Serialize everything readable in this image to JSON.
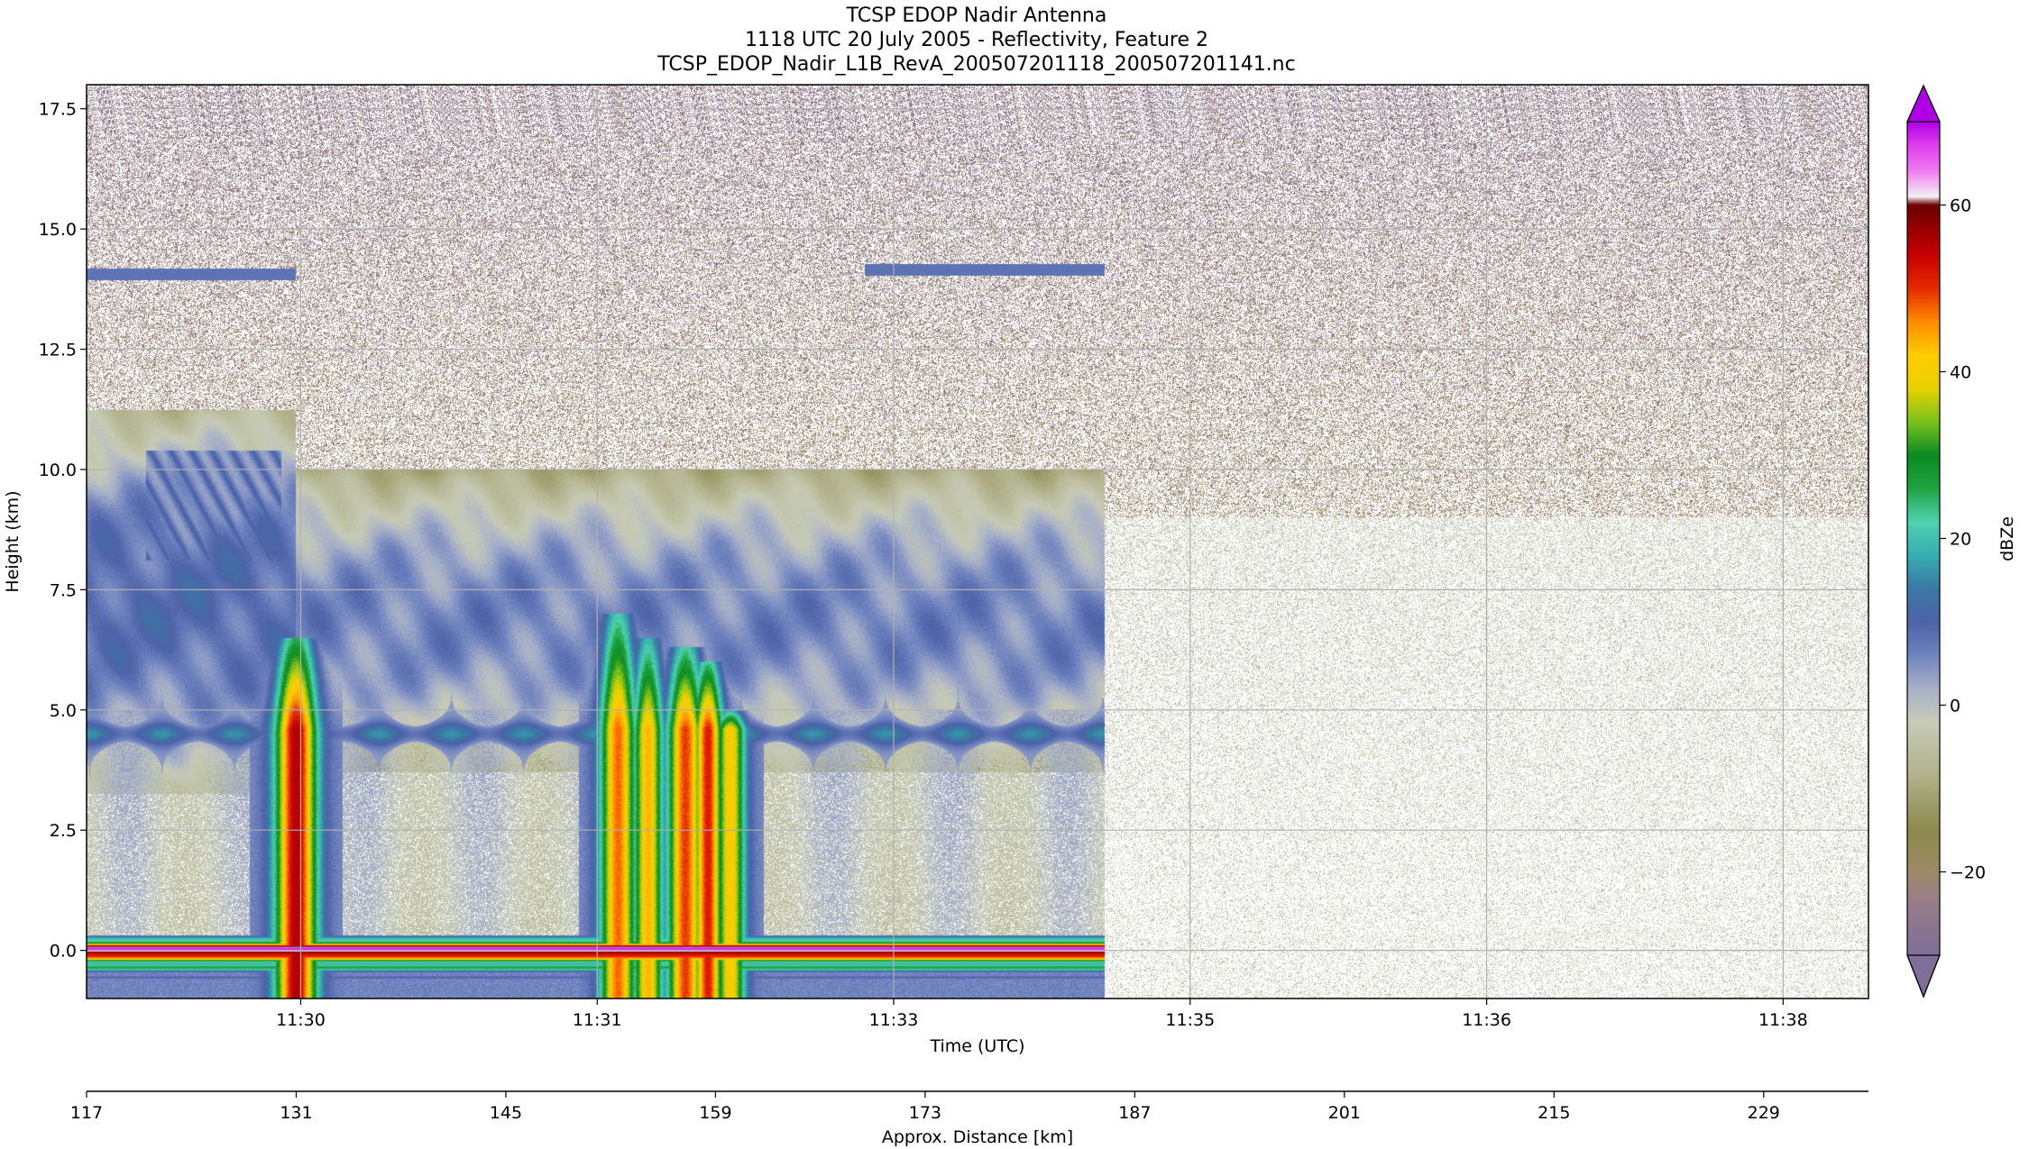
{
  "chart_data": {
    "type": "heatmap",
    "title": [
      "TCSP EDOP Nadir Antenna",
      "1118 UTC 20 July 2005 - Reflectivity, Feature 2",
      "TCSP_EDOP_Nadir_L1B_RevA_200507201118_200507201141.nc"
    ],
    "xlabel": "Time (UTC)",
    "ylabel": "Height (km)",
    "x2label": "Approx. Distance [km]",
    "colorbar_label": "dBZe",
    "ylim": [
      -1.0,
      18.0
    ],
    "xlim_distance_km": [
      117,
      236
    ],
    "yticks": [
      0.0,
      2.5,
      5.0,
      7.5,
      10.0,
      12.5,
      15.0,
      17.5
    ],
    "ytick_labels": [
      "0.0",
      "2.5",
      "5.0",
      "7.5",
      "10.0",
      "12.5",
      "15.0",
      "17.5"
    ],
    "xticks_distance_km": [
      131.3,
      151.1,
      170.9,
      190.7,
      210.5,
      230.3
    ],
    "xtick_labels": [
      "11:30",
      "11:31",
      "11:33",
      "11:35",
      "11:36",
      "11:38"
    ],
    "x2ticks": [
      117,
      131,
      145,
      159,
      173,
      187,
      201,
      215,
      229
    ],
    "x2tick_labels": [
      "117",
      "131",
      "145",
      "159",
      "173",
      "187",
      "201",
      "215",
      "229"
    ],
    "colorbar": {
      "range": [
        -30,
        70
      ],
      "ticks": [
        -20,
        0,
        20,
        40,
        60
      ],
      "tick_labels": [
        "−20",
        "0",
        "20",
        "40",
        "60"
      ],
      "extend": "both",
      "stops": [
        {
          "v": -30,
          "c": "#7e6e9a"
        },
        {
          "v": -23,
          "c": "#9a7f86"
        },
        {
          "v": -20,
          "c": "#9c8a65"
        },
        {
          "v": -15,
          "c": "#8c8a4e"
        },
        {
          "v": -8,
          "c": "#b3b38e"
        },
        {
          "v": -2,
          "c": "#c8ccb6"
        },
        {
          "v": 2,
          "c": "#a7b0c8"
        },
        {
          "v": 6,
          "c": "#6f83bf"
        },
        {
          "v": 10,
          "c": "#4d62a8"
        },
        {
          "v": 14,
          "c": "#3a79a5"
        },
        {
          "v": 18,
          "c": "#35aeb0"
        },
        {
          "v": 22,
          "c": "#4fd3b0"
        },
        {
          "v": 26,
          "c": "#1ea340"
        },
        {
          "v": 30,
          "c": "#0b8a22"
        },
        {
          "v": 34,
          "c": "#7ac21a"
        },
        {
          "v": 38,
          "c": "#e8d100"
        },
        {
          "v": 42,
          "c": "#ffcc00"
        },
        {
          "v": 46,
          "c": "#ff8a00"
        },
        {
          "v": 50,
          "c": "#e52a00"
        },
        {
          "v": 54,
          "c": "#c80000"
        },
        {
          "v": 58,
          "c": "#8a0000"
        },
        {
          "v": 60,
          "c": "#6b0000"
        },
        {
          "v": 61,
          "c": "#f4f0f4"
        },
        {
          "v": 64,
          "c": "#f07ef0"
        },
        {
          "v": 67,
          "c": "#e040ee"
        },
        {
          "v": 70,
          "c": "#b000e8"
        }
      ],
      "under_color": "#7e6e9a",
      "over_color": "#b000e8"
    },
    "features": {
      "anvil": [
        {
          "x0": 117,
          "x1": 131,
          "ybot": 5.0,
          "ytop": 9.5,
          "dbz": 8
        },
        {
          "x0": 131,
          "x1": 185,
          "ybot": 5.2,
          "ytop": 8.5,
          "dbz": 5
        }
      ],
      "upper_cells": [
        {
          "x0": 121,
          "x1": 130,
          "ybot": 8.5,
          "ytop": 10.4,
          "dbz": 10
        }
      ],
      "convective_cores": [
        {
          "x": 131.0,
          "w": 1.4,
          "top": 6.5,
          "peak": 50
        },
        {
          "x": 152.5,
          "w": 1.2,
          "top": 7.0,
          "peak": 42
        },
        {
          "x": 154.5,
          "w": 1.0,
          "top": 6.5,
          "peak": 38
        },
        {
          "x": 157.0,
          "w": 1.2,
          "top": 6.3,
          "peak": 44
        },
        {
          "x": 158.5,
          "w": 1.0,
          "top": 6.0,
          "peak": 46
        },
        {
          "x": 160.0,
          "w": 1.0,
          "top": 5.0,
          "peak": 36
        }
      ],
      "melting_layer": [
        {
          "x0": 117,
          "x1": 185,
          "y": 4.5,
          "dbz": 12
        }
      ],
      "surface_return": {
        "x0": 117,
        "x1": 185,
        "y": 0.0,
        "peak": 65
      },
      "spurious_ring": [
        {
          "x0": 117,
          "x1": 131,
          "y": 14.05,
          "dbz": 8
        },
        {
          "x0": 169,
          "x1": 185,
          "y": 14.15,
          "dbz": 8
        }
      ]
    }
  }
}
